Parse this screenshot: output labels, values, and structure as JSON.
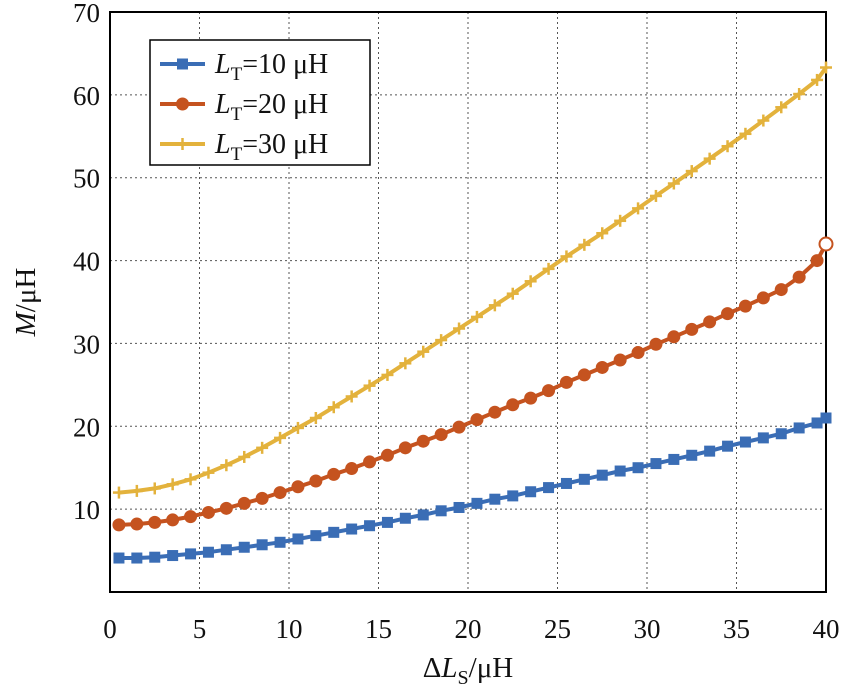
{
  "chart_data": {
    "type": "line",
    "xlabel": {
      "prefix": "Δ",
      "var": "L",
      "sub": "S",
      "unit": "/μH"
    },
    "ylabel": {
      "var": "M",
      "unit": "/μH"
    },
    "xlim": [
      0,
      40
    ],
    "ylim": [
      0,
      70
    ],
    "xticks": [
      "0",
      "5",
      "10",
      "15",
      "20",
      "25",
      "30",
      "35",
      "40"
    ],
    "yticks": [
      "10",
      "20",
      "30",
      "40",
      "50",
      "60",
      "70"
    ],
    "grid": true,
    "legend_position": "top-left",
    "x": [
      0.5,
      1.5,
      2.5,
      3.5,
      4.5,
      5.5,
      6.5,
      7.5,
      8.5,
      9.5,
      10.5,
      11.5,
      12.5,
      13.5,
      14.5,
      15.5,
      16.5,
      17.5,
      18.5,
      19.5,
      20.5,
      21.5,
      22.5,
      23.5,
      24.5,
      25.5,
      26.5,
      27.5,
      28.5,
      29.5,
      30.5,
      31.5,
      32.5,
      33.5,
      34.5,
      35.5,
      36.5,
      37.5,
      38.5,
      39.5,
      40.0
    ],
    "series": [
      {
        "name": {
          "var": "L",
          "sub": "T",
          "rest": "=10 μH"
        },
        "color": "#3a6db5",
        "marker": "square",
        "values": [
          4.1,
          4.1,
          4.2,
          4.4,
          4.6,
          4.8,
          5.1,
          5.4,
          5.7,
          6.0,
          6.4,
          6.8,
          7.2,
          7.6,
          8.0,
          8.4,
          8.9,
          9.3,
          9.8,
          10.2,
          10.7,
          11.2,
          11.6,
          12.1,
          12.6,
          13.1,
          13.6,
          14.1,
          14.6,
          15.0,
          15.5,
          16.0,
          16.5,
          17.0,
          17.6,
          18.1,
          18.6,
          19.1,
          19.8,
          20.4,
          21.0
        ]
      },
      {
        "name": {
          "var": "L",
          "sub": "T",
          "rest": "=20 μH"
        },
        "color": "#c5531f",
        "marker": "circle",
        "values": [
          8.1,
          8.2,
          8.4,
          8.7,
          9.1,
          9.6,
          10.1,
          10.7,
          11.3,
          12.0,
          12.7,
          13.4,
          14.2,
          14.9,
          15.7,
          16.5,
          17.4,
          18.2,
          19.0,
          19.9,
          20.8,
          21.7,
          22.6,
          23.4,
          24.3,
          25.3,
          26.2,
          27.1,
          28.0,
          28.9,
          29.9,
          30.8,
          31.7,
          32.6,
          33.6,
          34.5,
          35.5,
          36.5,
          38.0,
          40.0,
          42.0
        ]
      },
      {
        "name": {
          "var": "L",
          "sub": "T",
          "rest": "=30 μH"
        },
        "color": "#e3b23c",
        "marker": "plus",
        "values": [
          12.0,
          12.2,
          12.5,
          13.0,
          13.6,
          14.4,
          15.3,
          16.3,
          17.4,
          18.6,
          19.8,
          21.0,
          22.3,
          23.6,
          24.9,
          26.2,
          27.6,
          29.0,
          30.4,
          31.8,
          33.2,
          34.6,
          36.0,
          37.5,
          39.0,
          40.5,
          41.9,
          43.3,
          44.8,
          46.3,
          47.8,
          49.3,
          50.8,
          52.3,
          53.8,
          55.3,
          56.9,
          58.5,
          60.1,
          61.8,
          63.3
        ]
      }
    ]
  }
}
